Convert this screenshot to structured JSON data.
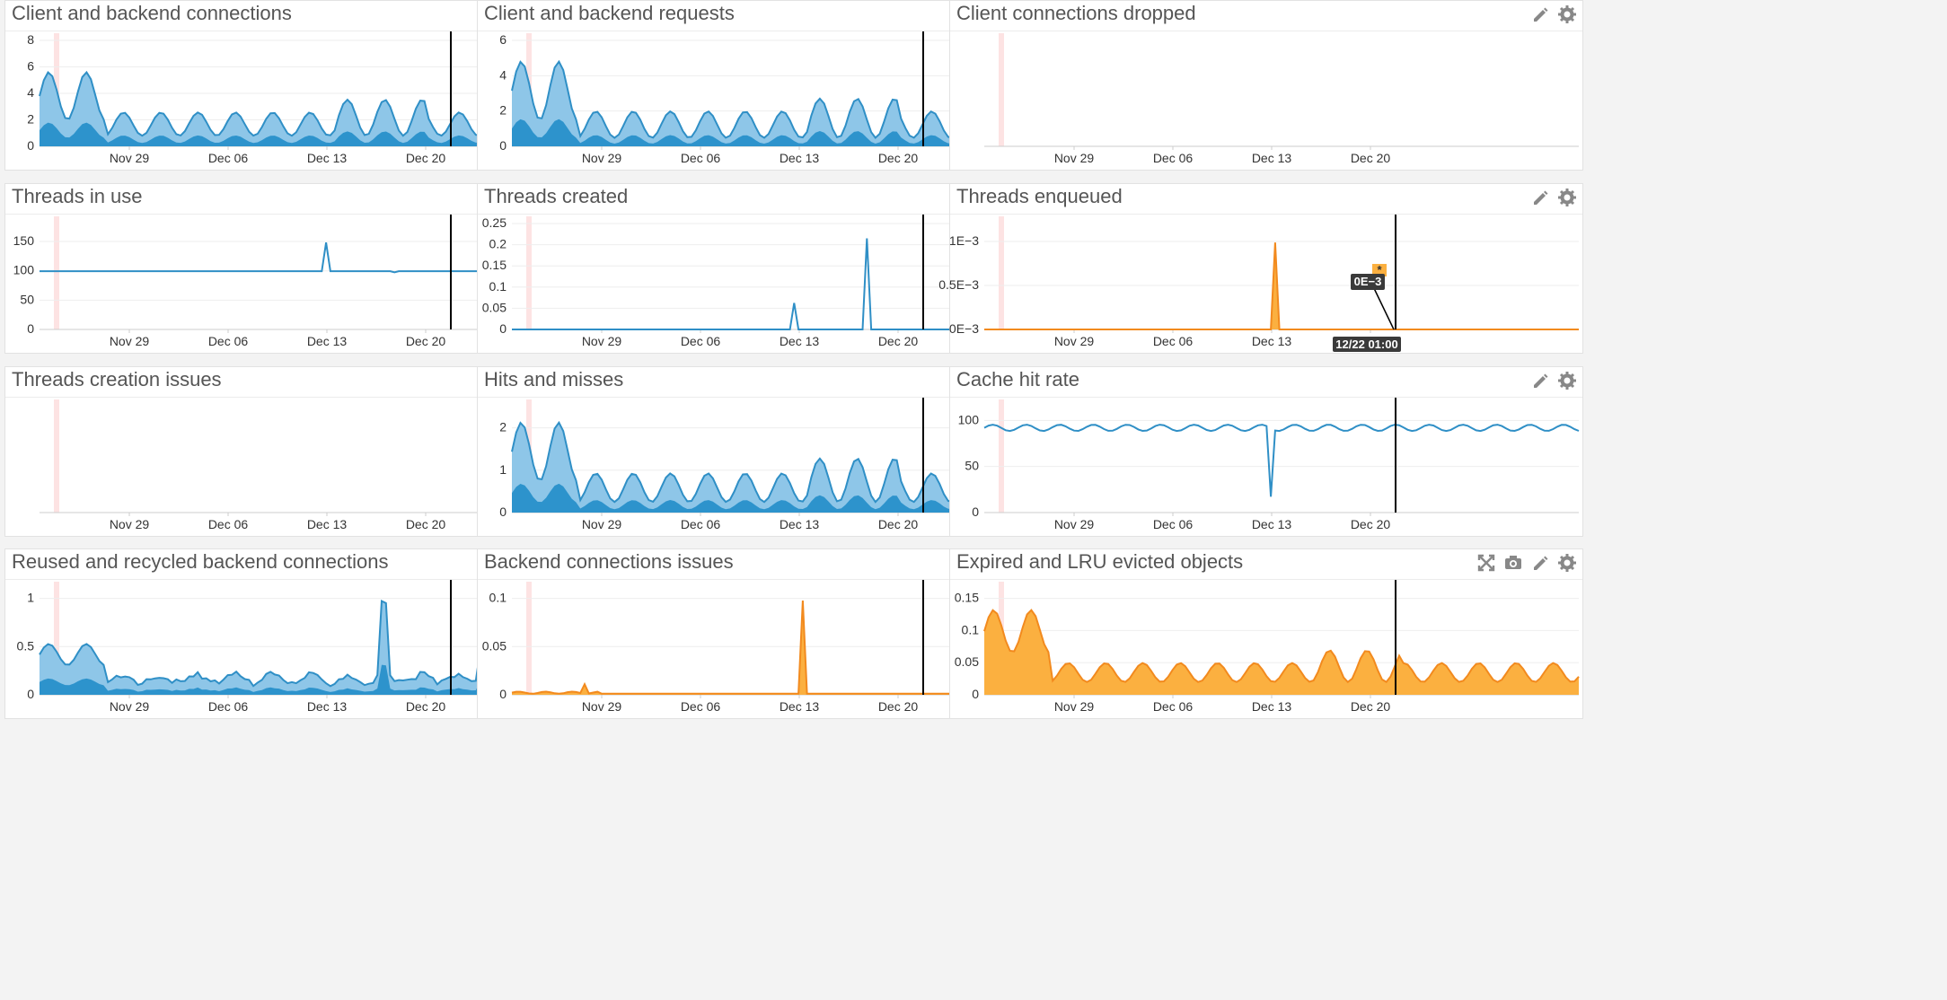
{
  "dashboard": {
    "x_ticks": [
      "Nov 29",
      "Dec 06",
      "Dec 13",
      "Dec 20"
    ],
    "panels": [
      {
        "id": "client-backend-connections",
        "title": "Client and backend connections",
        "y_ticks": [
          "0",
          "2",
          "4",
          "6",
          "8"
        ],
        "ymax": 8,
        "style": "blue-area",
        "icons": [
          "pencil-icon",
          "gear-icon"
        ],
        "cursor": true
      },
      {
        "id": "client-backend-requests",
        "title": "Client and backend requests",
        "y_ticks": [
          "0",
          "2",
          "4",
          "6"
        ],
        "ymax": 6,
        "style": "blue-area",
        "icons": [
          "pencil-icon",
          "gear-icon"
        ],
        "cursor": true
      },
      {
        "id": "client-connections-dropped",
        "title": "Client connections dropped",
        "y_ticks": [],
        "ymax": 1,
        "style": "empty",
        "icons": [
          "pencil-icon",
          "gear-icon"
        ],
        "cursor": false
      },
      {
        "id": "threads-in-use",
        "title": "Threads in use",
        "y_ticks": [
          "0",
          "50",
          "100",
          "150"
        ],
        "ymax": 180,
        "style": "blue-line",
        "icons": [
          "pencil-icon",
          "gear-icon"
        ],
        "cursor": true
      },
      {
        "id": "threads-created",
        "title": "Threads created",
        "y_ticks": [
          "0",
          "0.05",
          "0.1",
          "0.15",
          "0.2",
          "0.25"
        ],
        "ymax": 0.25,
        "style": "blue-line",
        "icons": [
          "pencil-icon",
          "gear-icon"
        ],
        "cursor": true
      },
      {
        "id": "threads-enqueued",
        "title": "Threads enqueued",
        "y_ticks": [
          "0E−3",
          "0.5E−3",
          "1E−3"
        ],
        "ymax": 0.0012,
        "style": "orange-line",
        "icons": [
          "pencil-icon",
          "gear-icon"
        ],
        "cursor": true,
        "tooltip": {
          "value": "0E−3",
          "time": "12/22 01:00",
          "marker": "*"
        }
      },
      {
        "id": "threads-creation-issues",
        "title": "Threads creation issues",
        "y_ticks": [],
        "ymax": 1,
        "style": "empty",
        "icons": [
          "pencil-icon",
          "gear-icon"
        ],
        "cursor": false
      },
      {
        "id": "hits-and-misses",
        "title": "Hits and misses",
        "y_ticks": [
          "0",
          "1",
          "2"
        ],
        "ymax": 2.5,
        "style": "blue-area",
        "icons": [
          "pencil-icon",
          "gear-icon"
        ],
        "cursor": true
      },
      {
        "id": "cache-hit-rate",
        "title": "Cache hit rate",
        "y_ticks": [
          "0",
          "50",
          "100"
        ],
        "ymax": 115,
        "style": "blue-line",
        "icons": [
          "pencil-icon",
          "gear-icon"
        ],
        "cursor": true
      },
      {
        "id": "reused-recycled-backend-connections",
        "title": "Reused and recycled backend connections",
        "y_ticks": [
          "0",
          "0.5",
          "1"
        ],
        "ymax": 1.1,
        "style": "blue-area",
        "icons": [
          "pencil-icon",
          "gear-icon"
        ],
        "cursor": true
      },
      {
        "id": "backend-connections-issues",
        "title": "Backend connections issues",
        "y_ticks": [
          "0",
          "0.05",
          "0.1"
        ],
        "ymax": 0.11,
        "style": "orange-line",
        "icons": [
          "pencil-icon",
          "gear-icon"
        ],
        "cursor": true
      },
      {
        "id": "expired-lru-evicted-objects",
        "title": "Expired and LRU evicted objects",
        "y_ticks": [
          "0",
          "0.05",
          "0.1",
          "0.15"
        ],
        "ymax": 0.165,
        "style": "orange-area",
        "icons": [
          "expand-icon",
          "camera-icon",
          "pencil-icon",
          "gear-icon"
        ],
        "cursor": true
      }
    ]
  },
  "colors": {
    "blue_line": "#2f8fc6",
    "blue_fill_light": "#8ec6e8",
    "blue_fill_dark": "#2d93cc",
    "orange_line": "#f28a1e",
    "orange_fill": "#fbb040",
    "marker_pink": "#fde3e3",
    "cursor": "#000000",
    "tooltip_bg": "#3a3a3a"
  }
}
